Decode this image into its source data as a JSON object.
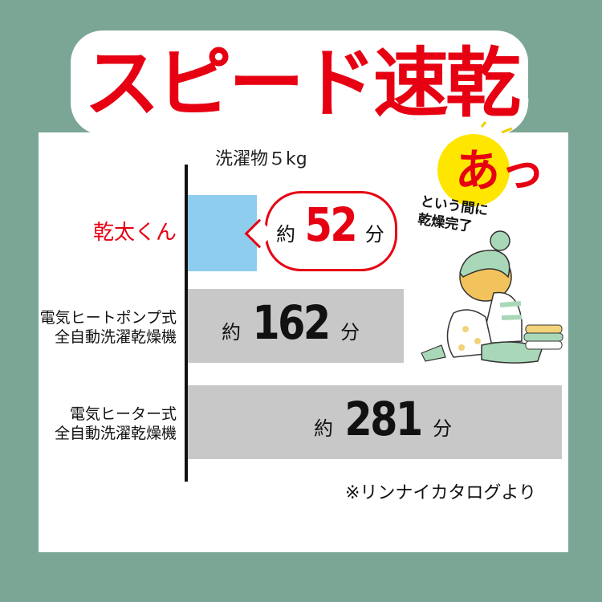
{
  "title": "スピード速乾",
  "load_label": "洗濯物５kg",
  "source": "※リンナイカタログより",
  "badge": {
    "big": "あっ",
    "line1": "という間に",
    "line2": "乾燥完了"
  },
  "colors": {
    "background": "#7ba695",
    "accent": "#e60012",
    "highlight_bar": "#8ecdee",
    "other_bars": "#c8c8c8",
    "badge": "#ffe600"
  },
  "chart_data": {
    "type": "bar",
    "orientation": "horizontal",
    "unit": "分",
    "prefix": "約",
    "categories": [
      "乾太くん",
      "電気ヒートポンプ式\n全自動洗濯乾燥機",
      "電気ヒーター式\n全自動洗濯乾燥機"
    ],
    "category_lines": [
      [
        "乾太くん"
      ],
      [
        "電気ヒートポンプ式",
        "全自動洗濯乾燥機"
      ],
      [
        "電気ヒーター式",
        "全自動洗濯乾燥機"
      ]
    ],
    "values": [
      52,
      162,
      281
    ],
    "value_labels": [
      "52",
      "162",
      "281"
    ]
  }
}
